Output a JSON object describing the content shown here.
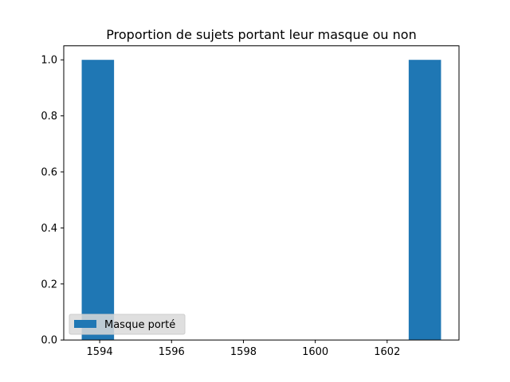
{
  "chart_data": {
    "type": "bar",
    "title": "Proportion de sujets portant leur masque ou non",
    "xlabel": "",
    "ylabel": "",
    "series": [
      {
        "name": "Masque porté",
        "color": "#1f77b4",
        "bars": [
          {
            "x_start": 1593.5,
            "x_end": 1594.4,
            "value": 1.0
          },
          {
            "x_start": 1602.6,
            "x_end": 1603.5,
            "value": 1.0
          }
        ]
      }
    ],
    "xlim": [
      1593.0,
      1604.0
    ],
    "ylim": [
      0.0,
      1.05
    ],
    "xticks": [
      1594,
      1596,
      1598,
      1600,
      1602
    ],
    "yticks": [
      0.0,
      0.2,
      0.4,
      0.6,
      0.8,
      1.0
    ],
    "xtick_labels": [
      "1594",
      "1596",
      "1598",
      "1600",
      "1602"
    ],
    "ytick_labels": [
      "0.0",
      "0.2",
      "0.4",
      "0.6",
      "0.8",
      "1.0"
    ],
    "grid": false,
    "legend_position": "lower-left"
  }
}
